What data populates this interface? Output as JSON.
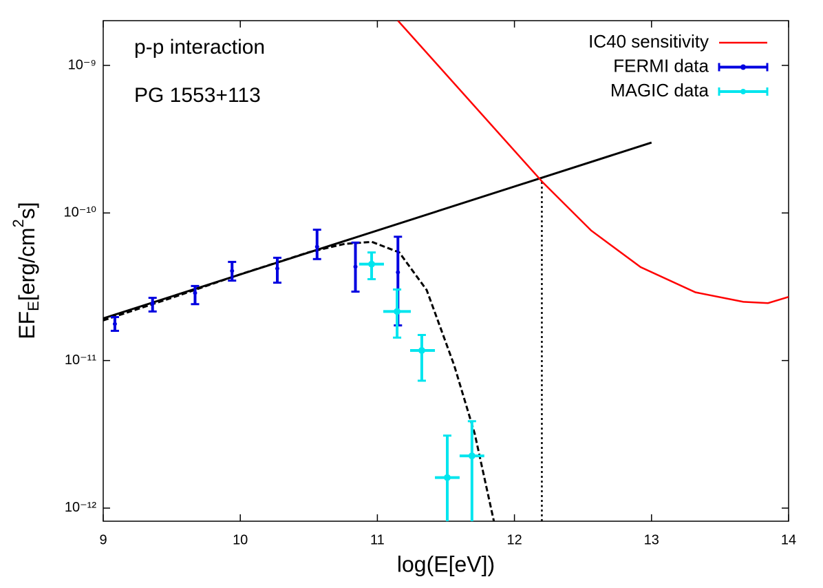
{
  "chart_data": {
    "type": "line",
    "x_label": "log(E[eV])",
    "y_label_parts": [
      "EF",
      "E",
      "[erg/cm",
      "2",
      "s]"
    ],
    "annotations": [
      "p-p interaction",
      "PG 1553+113"
    ],
    "log_y": true,
    "legend": "top-right",
    "xlim": [
      9,
      14
    ],
    "xticks": [
      9,
      10,
      11,
      12,
      13,
      14
    ],
    "ylim": [
      8.15e-13,
      2.01e-09
    ],
    "yticks": [
      {
        "value": 1e-12,
        "label": "10⁻¹²"
      },
      {
        "value": 1e-11,
        "label": "10⁻¹¹"
      },
      {
        "value": 1e-10,
        "label": "10⁻¹⁰"
      },
      {
        "value": 1e-09,
        "label": "10⁻⁹"
      }
    ],
    "series": [
      {
        "name": "IC40 sensitivity",
        "color": "#ff0000",
        "style": "line",
        "x": [
          11.15,
          12.21,
          12.56,
          12.92,
          13.32,
          13.67,
          13.85,
          14
        ],
        "values": [
          2.01e-09,
          1.6e-10,
          7.6e-11,
          4.3e-11,
          2.9e-11,
          2.5e-11,
          2.45e-11,
          2.7e-11
        ]
      },
      {
        "name": "FERMI data",
        "color": "#0000e0",
        "style": "errorbar",
        "x": [
          9.085,
          9.36,
          9.67,
          9.94,
          10.27,
          10.56,
          10.84,
          11.15
        ],
        "values": [
          1.77e-11,
          2.44e-11,
          2.87e-11,
          4.05e-11,
          4.2e-11,
          5.9e-11,
          4.32e-11,
          3.96e-11
        ],
        "y_low": [
          1.59e-11,
          2.15e-11,
          2.41e-11,
          3.48e-11,
          3.37e-11,
          4.87e-11,
          2.93e-11,
          1.73e-11
        ],
        "y_high": [
          1.97e-11,
          2.66e-11,
          3.2e-11,
          4.66e-11,
          4.97e-11,
          7.7e-11,
          6.3e-11,
          6.9e-11
        ]
      },
      {
        "name": "MAGIC data",
        "color": "#00e5ee",
        "style": "errorbar",
        "x": [
          10.958,
          11.144,
          11.324,
          11.51,
          11.69
        ],
        "x_low": [
          10.867,
          11.043,
          11.239,
          11.42,
          11.6
        ],
        "x_high": [
          11.048,
          11.244,
          11.42,
          11.6,
          11.78
        ],
        "values": [
          4.5e-11,
          2.15e-11,
          1.17e-11,
          1.61e-12,
          2.26e-12
        ],
        "y_low": [
          3.56e-11,
          1.43e-11,
          7.3e-12,
          8e-13,
          8e-13
        ],
        "y_high": [
          5.4e-11,
          3.03e-11,
          1.49e-11,
          3.1e-12,
          3.88e-12
        ]
      }
    ],
    "curves": [
      {
        "color": "#000000",
        "dash": "solid",
        "x": [
          9,
          13
        ],
        "values": [
          1.93e-11,
          3e-10
        ]
      },
      {
        "color": "#000000",
        "dash": "dashed",
        "x": [
          9,
          9.5,
          10,
          10.5,
          10.76,
          10.96,
          11.16,
          11.36,
          11.56,
          11.71,
          11.85
        ],
        "values": [
          1.87e-11,
          2.66e-11,
          3.84e-11,
          5.42e-11,
          6.17e-11,
          6.37e-11,
          5.4e-11,
          3e-11,
          9.3e-12,
          3.2e-12,
          8.15e-13
        ]
      }
    ],
    "marker_line": {
      "x": 12.2,
      "y": 1.7e-10,
      "color": "#000000"
    }
  }
}
